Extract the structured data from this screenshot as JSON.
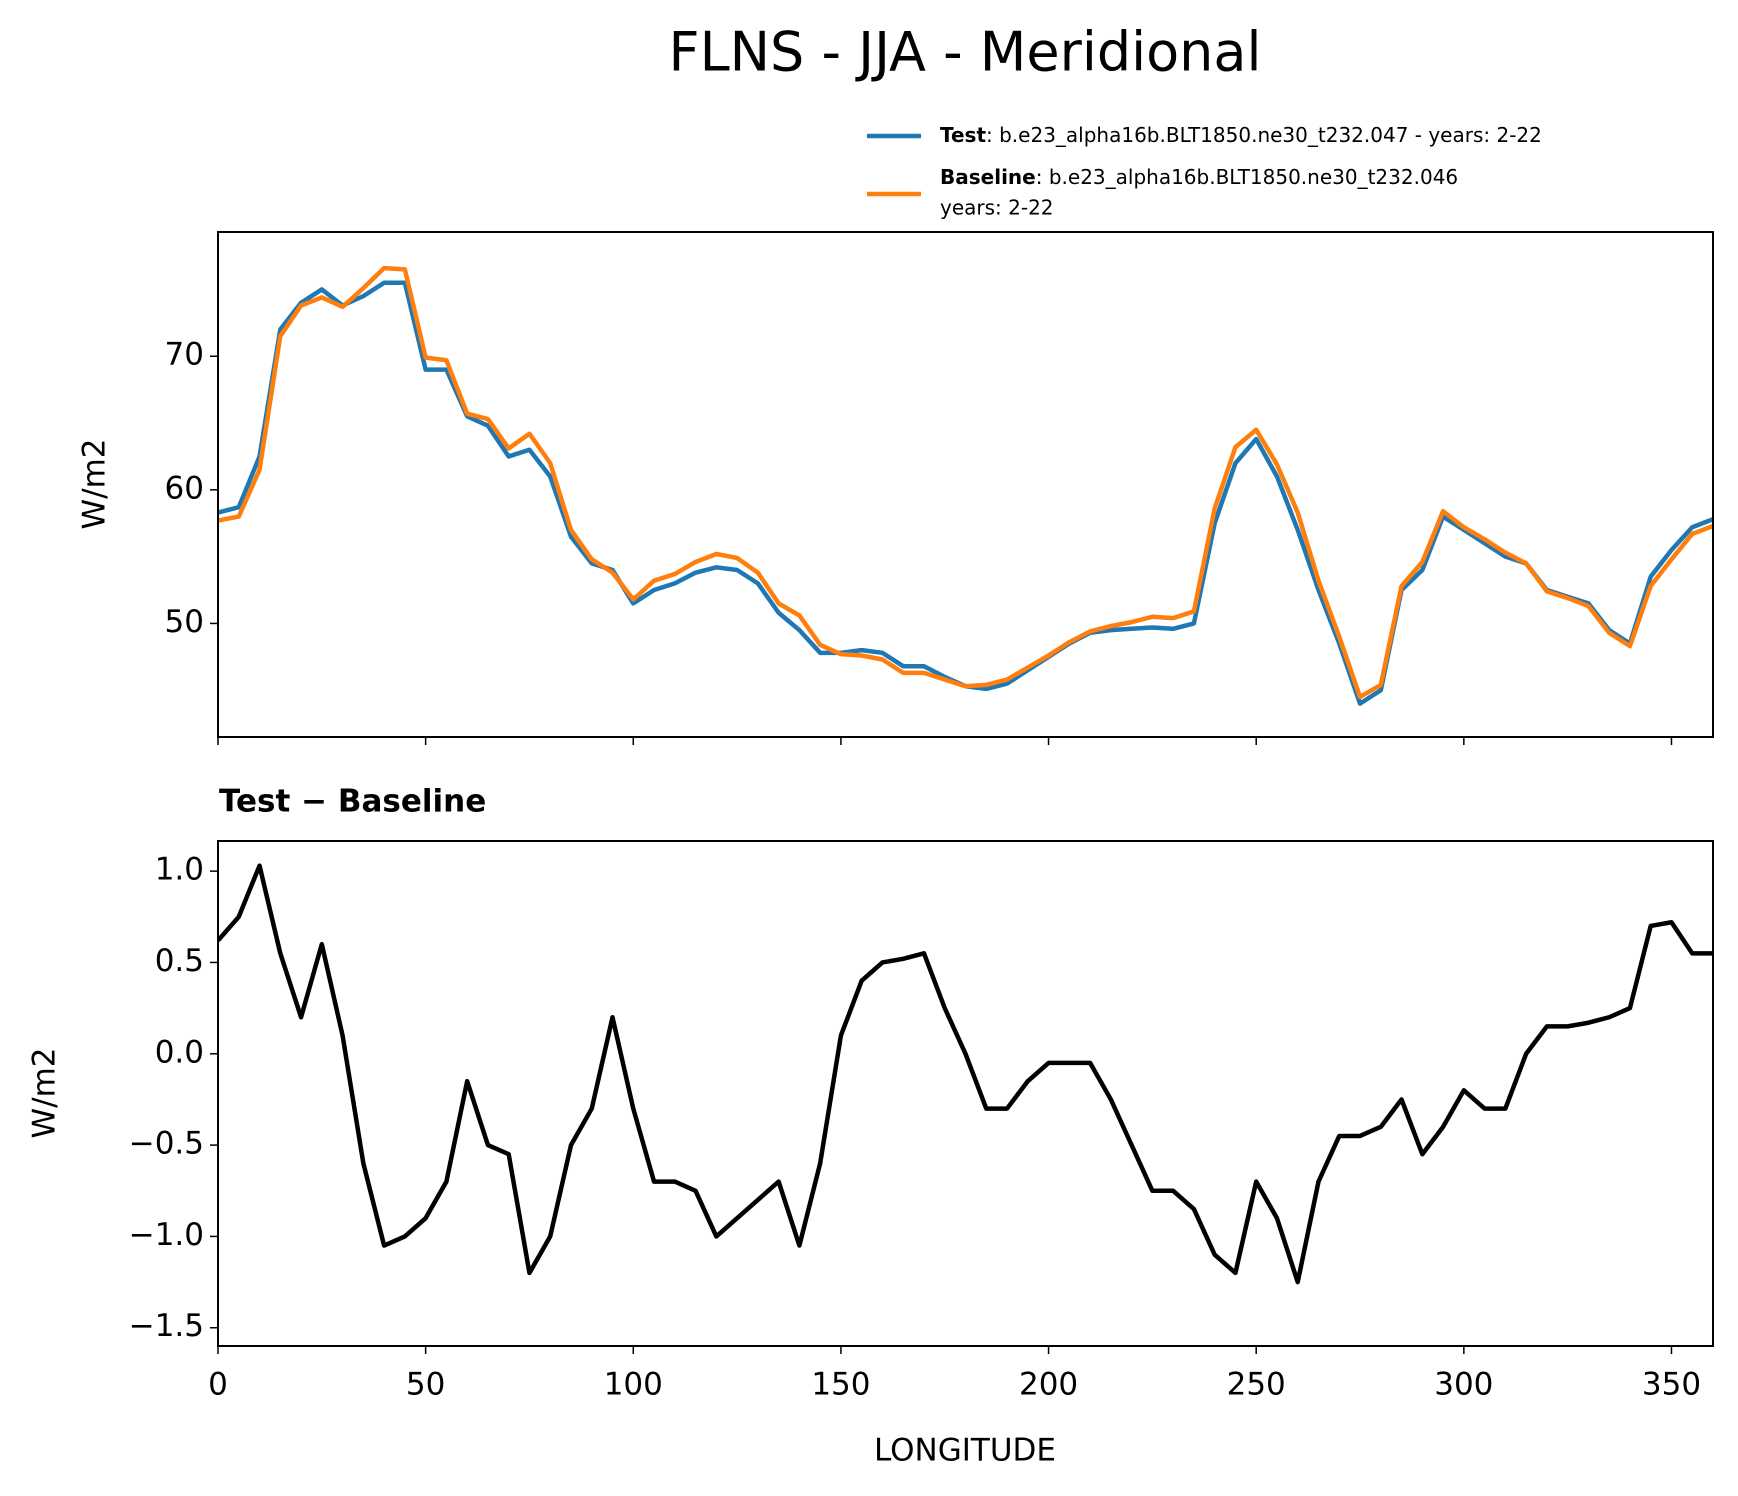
{
  "chart_data": [
    {
      "type": "line",
      "title": "FLNS - JJA - Meridional",
      "ylabel": "W/m2",
      "x": [
        0,
        5,
        10,
        15,
        20,
        25,
        30,
        35,
        40,
        45,
        50,
        55,
        60,
        65,
        70,
        75,
        80,
        85,
        90,
        95,
        100,
        105,
        110,
        115,
        120,
        125,
        130,
        135,
        140,
        145,
        150,
        155,
        160,
        165,
        170,
        175,
        180,
        185,
        190,
        195,
        200,
        205,
        210,
        215,
        220,
        225,
        230,
        235,
        240,
        245,
        250,
        255,
        260,
        265,
        270,
        275,
        280,
        285,
        290,
        295,
        300,
        305,
        310,
        315,
        320,
        325,
        330,
        335,
        340,
        345,
        350,
        355,
        360
      ],
      "xlim": [
        0,
        360
      ],
      "ylim": [
        41.5,
        79.3
      ],
      "yticks": [
        50,
        60,
        70
      ],
      "series": [
        {
          "name": "Test",
          "description": [
            ": b.e23_alpha16b.BLT1850.ne30_t232.047 - years: 2-22"
          ],
          "color": "#1f77b4",
          "values": [
            58.3,
            58.7,
            62.5,
            72,
            74,
            75,
            73.8,
            74.5,
            75.5,
            75.5,
            69,
            69,
            65.5,
            64.8,
            62.5,
            63,
            61,
            56.5,
            54.5,
            54,
            51.5,
            52.5,
            53,
            53.8,
            54.2,
            54,
            53,
            50.8,
            49.5,
            47.8,
            47.8,
            48,
            47.8,
            46.8,
            46.8,
            46,
            45.3,
            45.1,
            45.5,
            46.5,
            47.5,
            48.5,
            49.3,
            49.5,
            49.6,
            49.7,
            49.6,
            50,
            57.5,
            62,
            63.8,
            61,
            57,
            52.5,
            48.5,
            44,
            45,
            52.5,
            54,
            58,
            57,
            56,
            55,
            54.5,
            52.5,
            52,
            51.5,
            49.5,
            48.5,
            53.5,
            55.5,
            57.2,
            57.8
          ]
        },
        {
          "name": "Baseline",
          "description": [
            ": b.e23_alpha16b.BLT1850.ne30_t232.046",
            "years: 2-22"
          ],
          "color": "#ff7f0e",
          "values": [
            57.7,
            58.0,
            61.5,
            71.5,
            73.8,
            74.4,
            73.7,
            75.1,
            76.6,
            76.5,
            69.9,
            69.7,
            65.7,
            65.3,
            63.1,
            64.2,
            62.0,
            57.0,
            54.8,
            53.8,
            51.8,
            53.2,
            53.7,
            54.6,
            55.2,
            54.9,
            53.8,
            51.5,
            50.6,
            48.4,
            47.7,
            47.6,
            47.3,
            46.3,
            46.3,
            45.8,
            45.3,
            45.4,
            45.8,
            46.7,
            47.6,
            48.6,
            49.4,
            49.8,
            50.1,
            50.5,
            50.4,
            50.9,
            58.6,
            63.2,
            64.5,
            61.9,
            58.3,
            53.2,
            49.0,
            44.5,
            45.4,
            52.8,
            54.6,
            58.4,
            57.2,
            56.3,
            55.3,
            54.5,
            52.4,
            51.9,
            51.3,
            49.3,
            48.3,
            52.8,
            54.8,
            56.7,
            57.3
          ]
        }
      ]
    },
    {
      "type": "line",
      "title": "Test − Baseline",
      "xlabel": "LONGITUDE",
      "ylabel": "W/m2",
      "x": [
        0,
        5,
        10,
        15,
        20,
        25,
        30,
        35,
        40,
        45,
        50,
        55,
        60,
        65,
        70,
        75,
        80,
        85,
        90,
        95,
        100,
        105,
        110,
        115,
        120,
        125,
        130,
        135,
        140,
        145,
        150,
        155,
        160,
        165,
        170,
        175,
        180,
        185,
        190,
        195,
        200,
        205,
        210,
        215,
        220,
        225,
        230,
        235,
        240,
        245,
        250,
        255,
        260,
        265,
        270,
        275,
        280,
        285,
        290,
        295,
        300,
        305,
        310,
        315,
        320,
        325,
        330,
        335,
        340,
        345,
        350,
        355,
        360
      ],
      "xlim": [
        0,
        360
      ],
      "xticks": [
        0,
        50,
        100,
        150,
        200,
        250,
        300,
        350
      ],
      "ylim": [
        -1.6,
        1.165
      ],
      "yticks": [
        {
          "value": 1.0,
          "label": "1.0"
        },
        {
          "value": 0.5,
          "label": "0.5"
        },
        {
          "value": 0.0,
          "label": "0.0"
        },
        {
          "value": -0.5,
          "label": "−0.5"
        },
        {
          "value": -1.0,
          "label": "−1.0"
        },
        {
          "value": -1.5,
          "label": "−1.5"
        }
      ],
      "series": [
        {
          "color": "#000000",
          "values": [
            0.62,
            0.75,
            1.03,
            0.55,
            0.2,
            0.6,
            0.1,
            -0.6,
            -1.05,
            -1.0,
            -0.9,
            -0.7,
            -0.15,
            -0.5,
            -0.55,
            -1.2,
            -1.0,
            -0.5,
            -0.3,
            0.2,
            -0.3,
            -0.7,
            -0.7,
            -0.75,
            -1.0,
            -0.9,
            -0.8,
            -0.7,
            -1.05,
            -0.6,
            0.1,
            0.4,
            0.5,
            0.52,
            0.55,
            0.25,
            0.0,
            -0.3,
            -0.3,
            -0.15,
            -0.05,
            -0.05,
            -0.05,
            -0.25,
            -0.5,
            -0.75,
            -0.75,
            -0.85,
            -1.1,
            -1.2,
            -0.7,
            -0.9,
            -1.25,
            -0.7,
            -0.45,
            -0.45,
            -0.4,
            -0.25,
            -0.55,
            -0.4,
            -0.2,
            -0.3,
            -0.3,
            0.0,
            0.15,
            0.15,
            0.17,
            0.2,
            0.25,
            0.7,
            0.72,
            0.55,
            0.55
          ]
        }
      ]
    }
  ]
}
